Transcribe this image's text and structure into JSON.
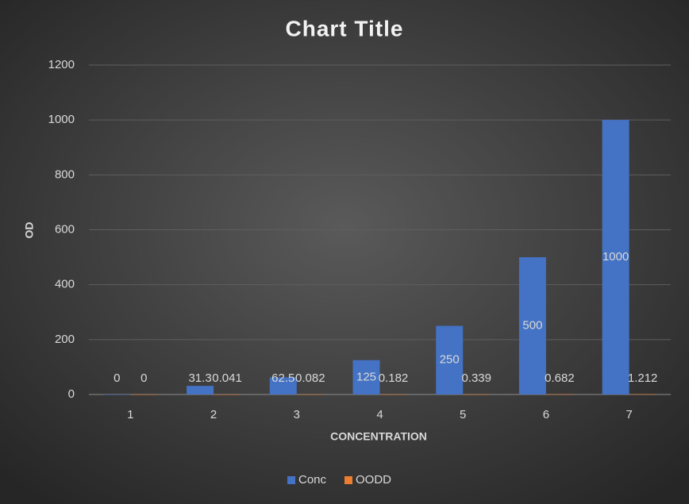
{
  "chart_data": {
    "type": "bar",
    "title": "Chart Title",
    "x_label": "CONCENTRATION",
    "y_label": "OD",
    "categories": [
      "1",
      "2",
      "3",
      "4",
      "5",
      "6",
      "7"
    ],
    "series": [
      {
        "name": "Conc",
        "color": "#4472c4",
        "values": [
          0,
          31.3,
          62.5,
          125,
          250,
          500,
          1000
        ]
      },
      {
        "name": "OODD",
        "color": "#ed7d31",
        "values": [
          0,
          0.041,
          0.082,
          0.182,
          0.339,
          0.682,
          1.212
        ]
      }
    ],
    "ylim": [
      0,
      1200
    ],
    "yticks": [
      0,
      200,
      400,
      600,
      800,
      1000,
      1200
    ],
    "grid": true,
    "legend": "bottom",
    "data_labels": true
  }
}
